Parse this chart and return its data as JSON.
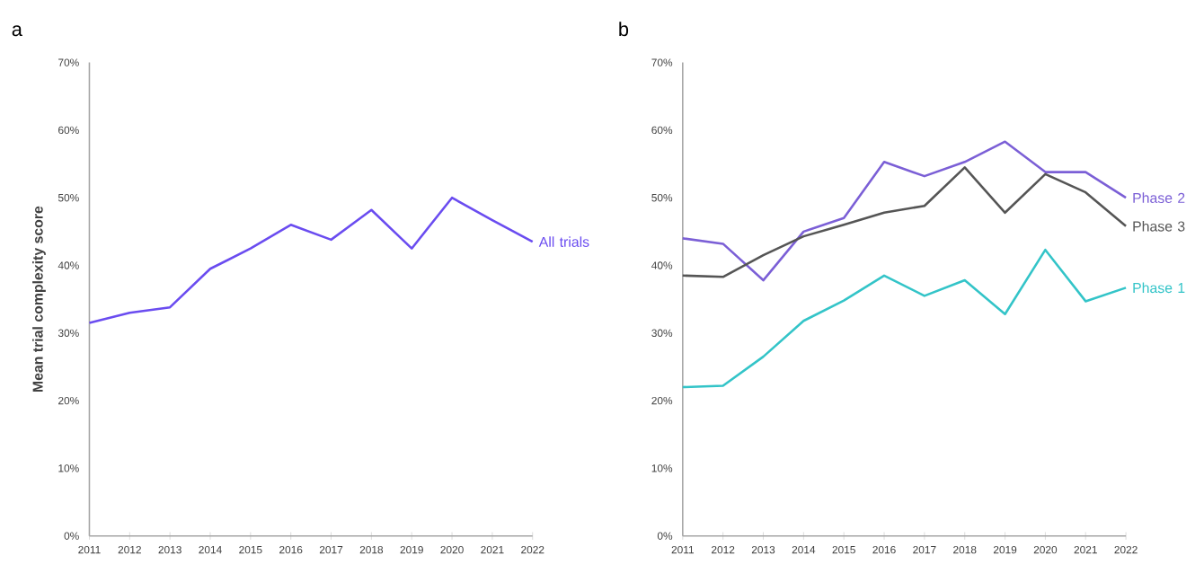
{
  "chart_data": [
    {
      "type": "line",
      "title": "a",
      "ylabel": "Mean trial complexity score",
      "categories": [
        "2011",
        "2012",
        "2013",
        "2014",
        "2015",
        "2016",
        "2017",
        "2018",
        "2019",
        "2020",
        "2021",
        "2022"
      ],
      "ylim": [
        0,
        70
      ],
      "yticks": [
        {
          "value": 0,
          "label": "0%"
        },
        {
          "value": 10,
          "label": "10%"
        },
        {
          "value": 20,
          "label": "20%"
        },
        {
          "value": 30,
          "label": "30%"
        },
        {
          "value": 40,
          "label": "40%"
        },
        {
          "value": 50,
          "label": "50%"
        },
        {
          "value": 60,
          "label": "60%"
        },
        {
          "value": 70,
          "label": "70%"
        }
      ],
      "series": [
        {
          "name": "All trials",
          "color": "#6a4cf0",
          "values": [
            31.5,
            33,
            33.8,
            39.5,
            42.5,
            46,
            43.8,
            48.2,
            42.5,
            50,
            46.7,
            43.5
          ]
        }
      ]
    },
    {
      "type": "line",
      "title": "b",
      "categories": [
        "2011",
        "2012",
        "2013",
        "2014",
        "2015",
        "2016",
        "2017",
        "2018",
        "2019",
        "2020",
        "2021",
        "2022"
      ],
      "ylim": [
        0,
        70
      ],
      "yticks": [
        {
          "value": 0,
          "label": "0%"
        },
        {
          "value": 10,
          "label": "10%"
        },
        {
          "value": 20,
          "label": "20%"
        },
        {
          "value": 30,
          "label": "30%"
        },
        {
          "value": 40,
          "label": "40%"
        },
        {
          "value": 50,
          "label": "50%"
        },
        {
          "value": 60,
          "label": "60%"
        },
        {
          "value": 70,
          "label": "70%"
        }
      ],
      "series": [
        {
          "name": "Phase 2",
          "color": "#7b5fd6",
          "values": [
            44,
            43.2,
            37.8,
            45,
            47,
            55.3,
            53.2,
            55.3,
            58.3,
            53.8,
            53.8,
            50
          ]
        },
        {
          "name": "Phase 3",
          "color": "#555555",
          "values": [
            38.5,
            38.3,
            41.5,
            44.3,
            46,
            47.8,
            48.8,
            54.5,
            47.8,
            53.5,
            50.8,
            45.8
          ]
        },
        {
          "name": "Phase 1",
          "color": "#33c4c8",
          "values": [
            22,
            22.2,
            26.5,
            31.8,
            34.8,
            38.5,
            35.5,
            37.8,
            32.8,
            42.3,
            34.7,
            36.7
          ]
        }
      ]
    }
  ]
}
